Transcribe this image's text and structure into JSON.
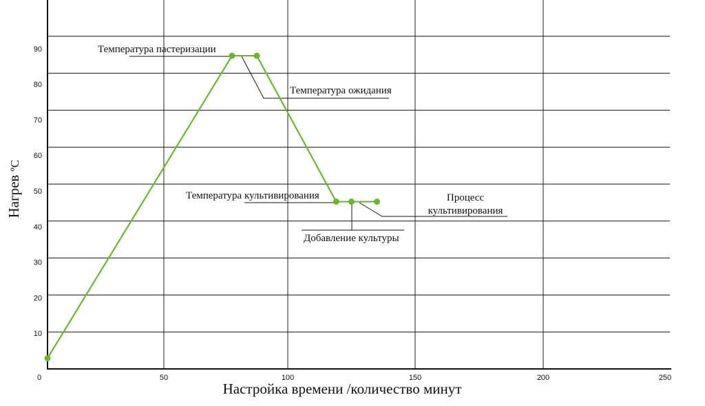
{
  "chart_data": {
    "type": "line",
    "title": "",
    "xlabel": "Настройка времени /количество минут",
    "ylabel": "Нагрев",
    "ylabel_unit": "ºC",
    "xlim": [
      0,
      250
    ],
    "ylim": [
      0,
      90
    ],
    "x_ticks": [
      0,
      50,
      100,
      150,
      200,
      250
    ],
    "y_ticks": [
      10,
      20,
      30,
      40,
      50,
      60,
      70,
      80,
      90
    ],
    "grid": true,
    "series": [
      {
        "color": "#6ab82a",
        "points": [
          [
            0,
            3
          ],
          [
            77.5,
            88
          ],
          [
            87.5,
            88
          ],
          [
            119,
            47
          ],
          [
            125,
            47
          ],
          [
            135,
            47
          ]
        ]
      }
    ],
    "annotations": [
      {
        "id": "pasteurization",
        "text": "Температура пастеризации"
      },
      {
        "id": "waiting",
        "text": "Температура ожидания"
      },
      {
        "id": "cultivation",
        "text": "Температура культивирования"
      },
      {
        "id": "process",
        "text": "Процесс",
        "text2": "культивирования"
      },
      {
        "id": "culture",
        "text": "Добавление культуры"
      }
    ]
  }
}
